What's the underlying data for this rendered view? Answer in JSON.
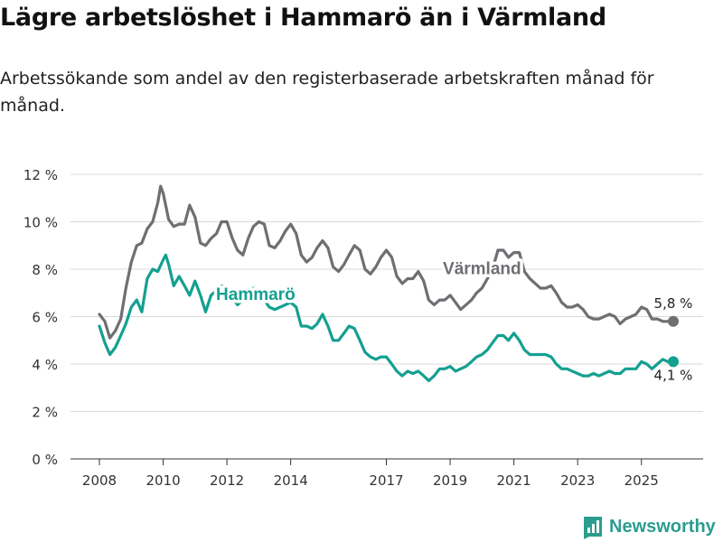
{
  "title": "Lägre arbetslöshet i Hammarö än i Värmland",
  "subtitle": "Arbetssökande som andel av den registerbaserade arbetskraften månad för månad.",
  "brand": {
    "name": "Newsworthy",
    "color": "#2a9d8f"
  },
  "chart_data": {
    "type": "line",
    "title": "Lägre arbetslöshet i Hammarö än i Värmland",
    "xlabel": "",
    "ylabel": "",
    "xlim": [
      2008.0,
      2026.0
    ],
    "ylim": [
      0,
      12
    ],
    "grid": true,
    "y_ticks": [
      0,
      2,
      4,
      6,
      8,
      10,
      12
    ],
    "y_tick_labels": [
      "0 %",
      "2 %",
      "4 %",
      "6 %",
      "8 %",
      "10 %",
      "12 %"
    ],
    "x_ticks": [
      2008,
      2010,
      2012,
      2014,
      2017,
      2019,
      2021,
      2023,
      2025
    ],
    "x_tick_labels": [
      "2008",
      "2010",
      "2012",
      "2014",
      "2017",
      "2019",
      "2021",
      "2023",
      "2025"
    ],
    "series": [
      {
        "name": "Värmland",
        "color": "#6e6e73",
        "end_label": "5,8 %",
        "points": [
          [
            2008.0,
            6.1
          ],
          [
            2008.17,
            5.8
          ],
          [
            2008.33,
            5.1
          ],
          [
            2008.5,
            5.4
          ],
          [
            2008.67,
            5.9
          ],
          [
            2008.83,
            7.2
          ],
          [
            2009.0,
            8.3
          ],
          [
            2009.17,
            9.0
          ],
          [
            2009.33,
            9.1
          ],
          [
            2009.5,
            9.7
          ],
          [
            2009.67,
            10.0
          ],
          [
            2009.83,
            10.8
          ],
          [
            2009.92,
            11.5
          ],
          [
            2010.0,
            11.2
          ],
          [
            2010.17,
            10.1
          ],
          [
            2010.33,
            9.8
          ],
          [
            2010.5,
            9.9
          ],
          [
            2010.67,
            9.9
          ],
          [
            2010.83,
            10.7
          ],
          [
            2011.0,
            10.2
          ],
          [
            2011.17,
            9.1
          ],
          [
            2011.33,
            9.0
          ],
          [
            2011.5,
            9.3
          ],
          [
            2011.67,
            9.5
          ],
          [
            2011.83,
            10.0
          ],
          [
            2012.0,
            10.0
          ],
          [
            2012.17,
            9.3
          ],
          [
            2012.33,
            8.8
          ],
          [
            2012.5,
            8.6
          ],
          [
            2012.67,
            9.3
          ],
          [
            2012.83,
            9.8
          ],
          [
            2013.0,
            10.0
          ],
          [
            2013.17,
            9.9
          ],
          [
            2013.33,
            9.0
          ],
          [
            2013.5,
            8.9
          ],
          [
            2013.67,
            9.2
          ],
          [
            2013.83,
            9.6
          ],
          [
            2014.0,
            9.9
          ],
          [
            2014.17,
            9.5
          ],
          [
            2014.33,
            8.6
          ],
          [
            2014.5,
            8.3
          ],
          [
            2014.67,
            8.5
          ],
          [
            2014.83,
            8.9
          ],
          [
            2015.0,
            9.2
          ],
          [
            2015.17,
            8.9
          ],
          [
            2015.33,
            8.1
          ],
          [
            2015.5,
            7.9
          ],
          [
            2015.67,
            8.2
          ],
          [
            2015.83,
            8.6
          ],
          [
            2016.0,
            9.0
          ],
          [
            2016.17,
            8.8
          ],
          [
            2016.33,
            8.0
          ],
          [
            2016.5,
            7.8
          ],
          [
            2016.67,
            8.1
          ],
          [
            2016.83,
            8.5
          ],
          [
            2017.0,
            8.8
          ],
          [
            2017.17,
            8.5
          ],
          [
            2017.33,
            7.7
          ],
          [
            2017.5,
            7.4
          ],
          [
            2017.67,
            7.6
          ],
          [
            2017.83,
            7.6
          ],
          [
            2018.0,
            7.9
          ],
          [
            2018.17,
            7.5
          ],
          [
            2018.33,
            6.7
          ],
          [
            2018.5,
            6.5
          ],
          [
            2018.67,
            6.7
          ],
          [
            2018.83,
            6.7
          ],
          [
            2019.0,
            6.9
          ],
          [
            2019.17,
            6.6
          ],
          [
            2019.33,
            6.3
          ],
          [
            2019.5,
            6.5
          ],
          [
            2019.67,
            6.7
          ],
          [
            2019.83,
            7.0
          ],
          [
            2020.0,
            7.2
          ],
          [
            2020.17,
            7.6
          ],
          [
            2020.33,
            8.0
          ],
          [
            2020.5,
            8.8
          ],
          [
            2020.67,
            8.8
          ],
          [
            2020.83,
            8.5
          ],
          [
            2021.0,
            8.7
          ],
          [
            2021.17,
            8.7
          ],
          [
            2021.33,
            7.9
          ],
          [
            2021.5,
            7.6
          ],
          [
            2021.67,
            7.4
          ],
          [
            2021.83,
            7.2
          ],
          [
            2022.0,
            7.2
          ],
          [
            2022.17,
            7.3
          ],
          [
            2022.33,
            7.0
          ],
          [
            2022.5,
            6.6
          ],
          [
            2022.67,
            6.4
          ],
          [
            2022.83,
            6.4
          ],
          [
            2023.0,
            6.5
          ],
          [
            2023.17,
            6.3
          ],
          [
            2023.33,
            6.0
          ],
          [
            2023.5,
            5.9
          ],
          [
            2023.67,
            5.9
          ],
          [
            2023.83,
            6.0
          ],
          [
            2024.0,
            6.1
          ],
          [
            2024.17,
            6.0
          ],
          [
            2024.33,
            5.7
          ],
          [
            2024.5,
            5.9
          ],
          [
            2024.67,
            6.0
          ],
          [
            2024.83,
            6.1
          ],
          [
            2025.0,
            6.4
          ],
          [
            2025.17,
            6.3
          ],
          [
            2025.33,
            5.9
          ],
          [
            2025.5,
            5.9
          ],
          [
            2025.67,
            5.8
          ],
          [
            2025.83,
            5.8
          ],
          [
            2026.0,
            5.8
          ]
        ]
      },
      {
        "name": "Hammarö",
        "color": "#14a090",
        "end_label": "4,1 %",
        "points": [
          [
            2008.0,
            5.6
          ],
          [
            2008.17,
            4.9
          ],
          [
            2008.33,
            4.4
          ],
          [
            2008.5,
            4.7
          ],
          [
            2008.67,
            5.2
          ],
          [
            2008.83,
            5.7
          ],
          [
            2009.0,
            6.4
          ],
          [
            2009.17,
            6.7
          ],
          [
            2009.33,
            6.2
          ],
          [
            2009.5,
            7.6
          ],
          [
            2009.67,
            8.0
          ],
          [
            2009.83,
            7.9
          ],
          [
            2010.0,
            8.4
          ],
          [
            2010.08,
            8.6
          ],
          [
            2010.17,
            8.2
          ],
          [
            2010.33,
            7.3
          ],
          [
            2010.5,
            7.7
          ],
          [
            2010.67,
            7.3
          ],
          [
            2010.83,
            6.9
          ],
          [
            2011.0,
            7.5
          ],
          [
            2011.17,
            6.9
          ],
          [
            2011.33,
            6.2
          ],
          [
            2011.5,
            6.9
          ],
          [
            2011.67,
            7.1
          ],
          [
            2011.83,
            7.3
          ],
          [
            2012.0,
            7.2
          ],
          [
            2012.17,
            6.8
          ],
          [
            2012.33,
            6.5
          ],
          [
            2012.5,
            6.7
          ],
          [
            2012.67,
            7.0
          ],
          [
            2012.83,
            7.2
          ],
          [
            2013.0,
            7.0
          ],
          [
            2013.17,
            6.7
          ],
          [
            2013.33,
            6.4
          ],
          [
            2013.5,
            6.3
          ],
          [
            2013.67,
            6.4
          ],
          [
            2013.83,
            6.5
          ],
          [
            2014.0,
            6.6
          ],
          [
            2014.17,
            6.4
          ],
          [
            2014.33,
            5.6
          ],
          [
            2014.5,
            5.6
          ],
          [
            2014.67,
            5.5
          ],
          [
            2014.83,
            5.7
          ],
          [
            2015.0,
            6.1
          ],
          [
            2015.17,
            5.6
          ],
          [
            2015.33,
            5.0
          ],
          [
            2015.5,
            5.0
          ],
          [
            2015.67,
            5.3
          ],
          [
            2015.83,
            5.6
          ],
          [
            2016.0,
            5.5
          ],
          [
            2016.17,
            5.0
          ],
          [
            2016.33,
            4.5
          ],
          [
            2016.5,
            4.3
          ],
          [
            2016.67,
            4.2
          ],
          [
            2016.83,
            4.3
          ],
          [
            2017.0,
            4.3
          ],
          [
            2017.17,
            4.0
          ],
          [
            2017.33,
            3.7
          ],
          [
            2017.5,
            3.5
          ],
          [
            2017.67,
            3.7
          ],
          [
            2017.83,
            3.6
          ],
          [
            2018.0,
            3.7
          ],
          [
            2018.17,
            3.5
          ],
          [
            2018.33,
            3.3
          ],
          [
            2018.5,
            3.5
          ],
          [
            2018.67,
            3.8
          ],
          [
            2018.83,
            3.8
          ],
          [
            2019.0,
            3.9
          ],
          [
            2019.17,
            3.7
          ],
          [
            2019.33,
            3.8
          ],
          [
            2019.5,
            3.9
          ],
          [
            2019.67,
            4.1
          ],
          [
            2019.83,
            4.3
          ],
          [
            2020.0,
            4.4
          ],
          [
            2020.17,
            4.6
          ],
          [
            2020.33,
            4.9
          ],
          [
            2020.5,
            5.2
          ],
          [
            2020.67,
            5.2
          ],
          [
            2020.83,
            5.0
          ],
          [
            2021.0,
            5.3
          ],
          [
            2021.17,
            5.0
          ],
          [
            2021.33,
            4.6
          ],
          [
            2021.5,
            4.4
          ],
          [
            2021.67,
            4.4
          ],
          [
            2021.83,
            4.4
          ],
          [
            2022.0,
            4.4
          ],
          [
            2022.17,
            4.3
          ],
          [
            2022.33,
            4.0
          ],
          [
            2022.5,
            3.8
          ],
          [
            2022.67,
            3.8
          ],
          [
            2022.83,
            3.7
          ],
          [
            2023.0,
            3.6
          ],
          [
            2023.17,
            3.5
          ],
          [
            2023.33,
            3.5
          ],
          [
            2023.5,
            3.6
          ],
          [
            2023.67,
            3.5
          ],
          [
            2023.83,
            3.6
          ],
          [
            2024.0,
            3.7
          ],
          [
            2024.17,
            3.6
          ],
          [
            2024.33,
            3.6
          ],
          [
            2024.5,
            3.8
          ],
          [
            2024.67,
            3.8
          ],
          [
            2024.83,
            3.8
          ],
          [
            2025.0,
            4.1
          ],
          [
            2025.17,
            4.0
          ],
          [
            2025.33,
            3.8
          ],
          [
            2025.5,
            4.0
          ],
          [
            2025.67,
            4.2
          ],
          [
            2025.83,
            4.1
          ],
          [
            2026.0,
            4.1
          ]
        ]
      }
    ],
    "annotations": [
      {
        "series": "Värmland",
        "text": "Värmland",
        "x": 2020.0,
        "y": 7.8
      },
      {
        "series": "Hammarö",
        "text": "Hammarö",
        "x": 2012.9,
        "y": 6.7
      }
    ]
  }
}
